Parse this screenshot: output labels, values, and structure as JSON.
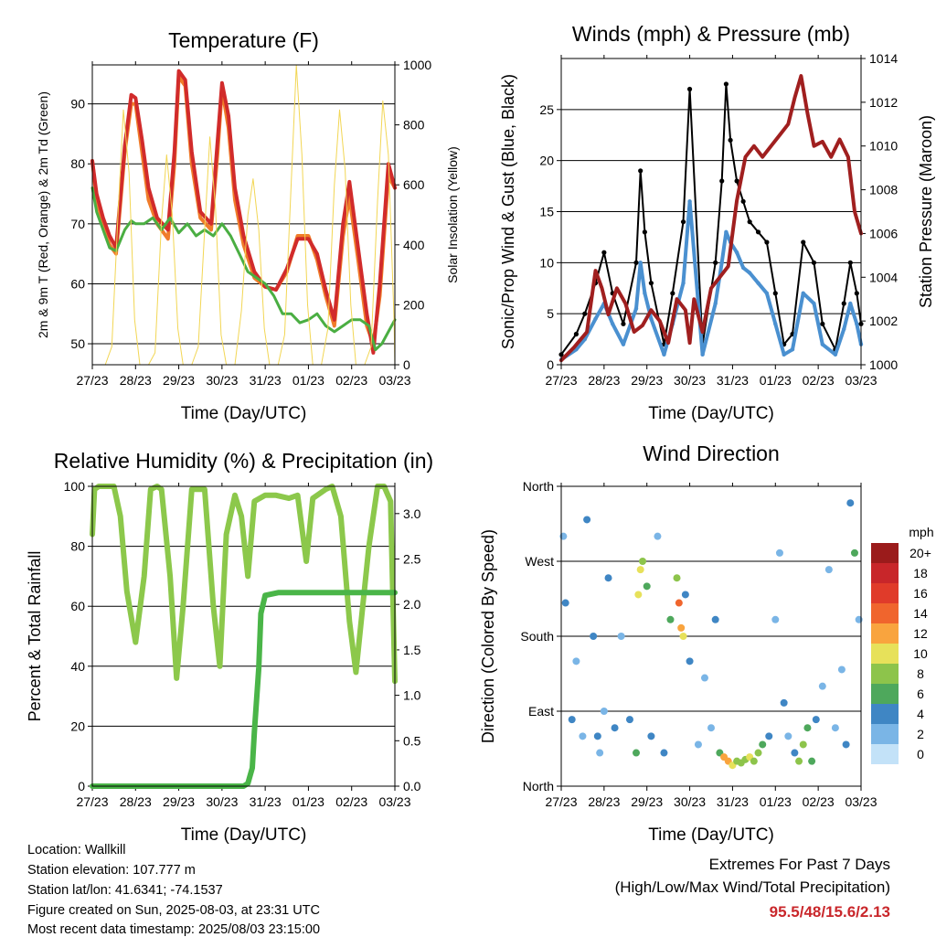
{
  "x_ticks": [
    "27/23",
    "28/23",
    "29/23",
    "30/23",
    "31/23",
    "01/23",
    "02/23",
    "03/23"
  ],
  "colors": {
    "temp_2m": "#f07c2a",
    "temp_9m": "#d12b2b",
    "dewpoint": "#4aae42",
    "solar": "#f2d654",
    "wind": "#4a90d0",
    "gust": "#000000",
    "pressure": "#a01f1f",
    "rh": "#8cc84b",
    "rain": "#4ab548",
    "extremes": "#c9272b"
  },
  "chart_data": [
    {
      "id": "temperature",
      "type": "line",
      "title": "Temperature (F)",
      "xlabel": "Time (Day/UTC)",
      "ylabel": "2m & 9m T (Red, Orange) & 2m Td (Green)",
      "y2label": "Solar Insolation (Yellow)",
      "xlim": [
        0,
        7
      ],
      "ylim": [
        46.5,
        96.5
      ],
      "y2lim": [
        0,
        1000
      ],
      "yticks": [
        50,
        60,
        70,
        80,
        90
      ],
      "y2ticks": [
        0,
        200,
        400,
        600,
        800,
        1000
      ],
      "series": [
        {
          "key": "temp_2m",
          "x": [
            0,
            0.1,
            0.25,
            0.4,
            0.55,
            0.75,
            0.9,
            1.0,
            1.15,
            1.3,
            1.5,
            1.75,
            1.9,
            2.0,
            2.15,
            2.3,
            2.5,
            2.75,
            2.9,
            3.0,
            3.15,
            3.3,
            3.5,
            3.75,
            4.0,
            4.25,
            4.5,
            4.75,
            5.0,
            5.2,
            5.4,
            5.6,
            5.8,
            5.95,
            6.15,
            6.35,
            6.5,
            6.65,
            6.85,
            7.0
          ],
          "y": [
            80.5,
            74,
            70,
            66.5,
            65,
            82,
            90,
            90,
            82,
            74,
            70,
            67.5,
            80,
            94.5,
            93,
            80,
            71,
            69,
            82,
            92.5,
            86,
            74,
            66.5,
            61,
            59.5,
            59,
            62,
            68,
            68,
            64,
            58,
            53,
            68,
            74.5,
            64,
            53,
            50,
            58,
            78,
            76
          ]
        },
        {
          "key": "temp_9m",
          "x": [
            0,
            0.1,
            0.25,
            0.4,
            0.55,
            0.75,
            0.9,
            1.0,
            1.15,
            1.3,
            1.5,
            1.75,
            1.9,
            2.0,
            2.15,
            2.3,
            2.5,
            2.75,
            2.9,
            3.0,
            3.15,
            3.3,
            3.5,
            3.75,
            4.0,
            4.25,
            4.5,
            4.75,
            5.0,
            5.2,
            5.4,
            5.6,
            5.8,
            5.95,
            6.15,
            6.35,
            6.5,
            6.65,
            6.85,
            7.0
          ],
          "y": [
            80.5,
            75,
            71,
            68,
            66,
            83,
            91.5,
            91,
            84,
            76,
            71,
            69,
            82,
            95.5,
            94,
            82,
            72,
            70,
            84,
            93.5,
            88,
            76,
            68,
            62,
            59.5,
            59,
            62.5,
            67.5,
            67.5,
            65,
            59,
            54,
            70,
            77,
            66,
            55,
            48.5,
            60,
            80,
            76
          ]
        },
        {
          "key": "dewpoint",
          "x": [
            0,
            0.1,
            0.25,
            0.4,
            0.55,
            0.75,
            0.9,
            1.0,
            1.2,
            1.4,
            1.6,
            1.8,
            2.0,
            2.2,
            2.4,
            2.6,
            2.8,
            3.0,
            3.2,
            3.4,
            3.6,
            3.8,
            4.0,
            4.2,
            4.4,
            4.6,
            4.8,
            5.0,
            5.2,
            5.4,
            5.6,
            5.8,
            6.0,
            6.2,
            6.4,
            6.55,
            6.7,
            6.85,
            7.0
          ],
          "y": [
            76,
            72,
            69,
            66,
            65.5,
            69,
            70.5,
            70,
            70,
            71,
            69,
            71,
            68.5,
            70,
            68,
            69,
            68,
            70,
            68,
            65,
            62,
            61,
            60,
            58,
            55,
            55,
            53.5,
            54,
            55,
            53,
            52,
            53,
            54,
            54,
            53,
            49,
            50,
            52,
            54
          ]
        },
        {
          "key": "solar",
          "x": [
            0,
            0.3,
            0.45,
            0.6,
            0.72,
            0.85,
            0.98,
            1.1,
            1.3,
            1.45,
            1.6,
            1.72,
            1.85,
            1.98,
            2.1,
            2.3,
            2.45,
            2.6,
            2.72,
            2.85,
            2.98,
            3.1,
            3.3,
            3.45,
            3.6,
            3.72,
            3.85,
            3.98,
            4.1,
            4.3,
            4.45,
            4.6,
            4.72,
            4.85,
            4.98,
            5.1,
            5.3,
            5.45,
            5.6,
            5.72,
            5.85,
            5.98,
            6.1,
            6.3,
            6.45,
            6.6,
            6.72,
            6.85,
            6.98,
            7.0
          ],
          "y": [
            0,
            0,
            60,
            520,
            850,
            640,
            150,
            0,
            0,
            40,
            480,
            700,
            500,
            120,
            0,
            0,
            60,
            450,
            760,
            520,
            100,
            0,
            0,
            180,
            500,
            620,
            450,
            120,
            0,
            0,
            100,
            600,
            1000,
            700,
            200,
            0,
            0,
            120,
            600,
            850,
            650,
            200,
            0,
            0,
            60,
            550,
            880,
            700,
            150,
            0
          ]
        }
      ]
    },
    {
      "id": "winds",
      "type": "scatter",
      "title": "Winds (mph) & Pressure (mb)",
      "xlabel": "Time (Day/UTC)",
      "ylabel": "Sonic/Prop Wind & Gust (Blue, Black)",
      "y2label": "Station Pressure (Maroon)",
      "xlim": [
        0,
        7
      ],
      "ylim": [
        0,
        30
      ],
      "y2lim": [
        1000,
        1014
      ],
      "yticks": [
        0,
        5,
        10,
        15,
        20,
        25
      ],
      "y2ticks": [
        1000,
        1002,
        1004,
        1006,
        1008,
        1010,
        1012,
        1014
      ],
      "series": [
        {
          "key": "gust",
          "x": [
            0,
            0.35,
            0.55,
            0.8,
            1.0,
            1.2,
            1.45,
            1.75,
            1.85,
            1.95,
            2.1,
            2.4,
            2.6,
            2.85,
            3.0,
            3.3,
            3.6,
            3.75,
            3.85,
            3.95,
            4.1,
            4.25,
            4.4,
            4.6,
            4.8,
            5.0,
            5.2,
            5.4,
            5.65,
            5.9,
            6.1,
            6.4,
            6.6,
            6.75,
            6.9,
            7.0
          ],
          "y": [
            1,
            3,
            5,
            8,
            11,
            7,
            4,
            10,
            19,
            13,
            8,
            2,
            7,
            14,
            27,
            2,
            10,
            18,
            27.5,
            22,
            18,
            16,
            14,
            13,
            12,
            7,
            2,
            3,
            12,
            10,
            4,
            1.5,
            6,
            10,
            7,
            4
          ]
        },
        {
          "key": "wind",
          "x": [
            0,
            0.35,
            0.55,
            0.8,
            1.0,
            1.2,
            1.45,
            1.75,
            1.85,
            1.95,
            2.1,
            2.4,
            2.6,
            2.85,
            3.0,
            3.3,
            3.6,
            3.75,
            3.85,
            3.95,
            4.1,
            4.25,
            4.4,
            4.6,
            4.8,
            5.0,
            5.2,
            5.4,
            5.65,
            5.9,
            6.1,
            6.4,
            6.6,
            6.75,
            6.9,
            7.0
          ],
          "y": [
            0.5,
            1.5,
            2.5,
            4.5,
            6,
            4,
            2,
            5.5,
            10,
            7,
            4.5,
            1,
            4,
            8,
            16,
            1,
            6,
            10,
            13,
            12,
            11,
            9.5,
            9,
            8,
            7,
            4,
            1,
            1.5,
            7,
            6,
            2,
            1,
            3.5,
            6,
            4,
            2
          ]
        },
        {
          "key": "pressure",
          "x": [
            0,
            0.3,
            0.6,
            0.8,
            0.95,
            1.1,
            1.3,
            1.5,
            1.7,
            1.9,
            2.1,
            2.3,
            2.5,
            2.7,
            2.9,
            3.0,
            3.1,
            3.3,
            3.5,
            3.7,
            3.9,
            4.1,
            4.3,
            4.5,
            4.7,
            4.9,
            5.1,
            5.3,
            5.45,
            5.6,
            5.75,
            5.9,
            6.1,
            6.3,
            6.5,
            6.7,
            6.85,
            7.0
          ],
          "y": [
            1000.2,
            1000.8,
            1001.5,
            1004.3,
            1003.5,
            1002.3,
            1003.5,
            1002.8,
            1001.5,
            1001.8,
            1002.5,
            1002.0,
            1001.0,
            1003.0,
            1002.5,
            1001.0,
            1003.0,
            1001.5,
            1003.5,
            1004.0,
            1004.5,
            1007.5,
            1009.5,
            1010.0,
            1009.5,
            1010.0,
            1010.5,
            1011.0,
            1012.2,
            1013.2,
            1011.5,
            1010.0,
            1010.2,
            1009.5,
            1010.3,
            1009.5,
            1007.0,
            1006.0
          ]
        }
      ]
    },
    {
      "id": "humidity",
      "type": "line",
      "title": "Relative Humidity (%) & Precipitation (in)",
      "xlabel": "Time (Day/UTC)",
      "ylabel": "Percent & Total Rainfall",
      "xlim": [
        0,
        7
      ],
      "ylim": [
        0,
        100
      ],
      "y2lim": [
        0,
        3.3
      ],
      "yticks": [
        0,
        20,
        40,
        60,
        80,
        100
      ],
      "y2ticks": [
        0.0,
        0.5,
        1.0,
        1.5,
        2.0,
        2.5,
        3.0
      ],
      "series": [
        {
          "key": "rh",
          "x": [
            0,
            0.05,
            0.15,
            0.5,
            0.65,
            0.8,
            1.0,
            1.2,
            1.35,
            1.5,
            1.6,
            1.8,
            1.95,
            2.1,
            2.3,
            2.6,
            2.8,
            2.95,
            3.1,
            3.3,
            3.45,
            3.6,
            3.75,
            4.0,
            4.25,
            4.55,
            4.75,
            4.95,
            5.1,
            5.4,
            5.55,
            5.75,
            5.95,
            6.1,
            6.4,
            6.6,
            6.75,
            6.9,
            7.0
          ],
          "y": [
            84,
            99,
            100,
            100,
            90,
            65,
            48,
            70,
            99,
            100,
            99,
            70,
            36,
            60,
            99,
            99,
            60,
            40,
            84,
            97,
            90,
            70,
            95,
            97,
            97,
            96,
            97,
            75,
            96,
            99,
            100,
            90,
            55,
            38,
            80,
            100,
            100,
            95,
            35
          ]
        },
        {
          "key": "rain",
          "x": [
            0,
            3.5,
            3.6,
            3.7,
            3.75,
            3.85,
            3.9,
            4.0,
            4.3,
            7.0
          ],
          "y": [
            0.0,
            0.0,
            0.03,
            0.2,
            0.6,
            1.3,
            1.9,
            2.1,
            2.13,
            2.13
          ]
        }
      ]
    },
    {
      "id": "direction",
      "type": "scatter",
      "title": "Wind Direction",
      "xlabel": "Time (Day/UTC)",
      "ylabel": "Direction (Colored By Speed)",
      "xlim": [
        0,
        7
      ],
      "ylim": [
        0,
        360
      ],
      "yticks": [
        "North",
        "East",
        "South",
        "West",
        "North"
      ],
      "colorbar": {
        "unit": "mph",
        "labels": [
          "20+",
          "18",
          "16",
          "14",
          "12",
          "10",
          "8",
          "6",
          "4",
          "2",
          "0"
        ],
        "colors": [
          "#9b1b1b",
          "#c8262a",
          "#e03b2a",
          "#f0652d",
          "#f9a43e",
          "#e7e15a",
          "#8dc44b",
          "#4ea85c",
          "#3f86c4",
          "#7ab5e6",
          "#c3e2f8"
        ]
      },
      "series": [
        {
          "key": "direction",
          "x": [
            0.05,
            0.1,
            0.25,
            0.35,
            0.5,
            0.6,
            0.75,
            0.85,
            0.9,
            1.0,
            1.1,
            1.25,
            1.4,
            1.6,
            1.75,
            1.8,
            1.85,
            1.9,
            2.0,
            2.1,
            2.25,
            2.4,
            2.55,
            2.7,
            2.75,
            2.8,
            2.85,
            2.9,
            3.0,
            3.2,
            3.35,
            3.5,
            3.6,
            3.7,
            3.8,
            3.9,
            4.0,
            4.1,
            4.2,
            4.3,
            4.4,
            4.5,
            4.6,
            4.7,
            4.85,
            5.0,
            5.1,
            5.2,
            5.3,
            5.45,
            5.55,
            5.65,
            5.75,
            5.85,
            5.95,
            6.1,
            6.25,
            6.4,
            6.55,
            6.65,
            6.75,
            6.85,
            6.95
          ],
          "y": [
            300,
            220,
            80,
            150,
            60,
            320,
            180,
            60,
            40,
            90,
            250,
            70,
            180,
            80,
            40,
            230,
            260,
            270,
            240,
            60,
            300,
            40,
            200,
            250,
            220,
            190,
            180,
            230,
            150,
            50,
            130,
            70,
            200,
            40,
            35,
            30,
            25,
            30,
            28,
            32,
            35,
            30,
            40,
            50,
            60,
            200,
            280,
            100,
            60,
            40,
            30,
            50,
            70,
            30,
            80,
            120,
            260,
            70,
            140,
            50,
            340,
            280,
            200
          ],
          "speed": [
            2,
            4,
            3,
            1,
            2,
            3,
            4,
            3,
            2,
            1,
            4,
            3,
            2,
            3,
            5,
            9,
            10,
            8,
            5,
            3,
            2,
            3,
            5,
            8,
            14,
            12,
            9,
            4,
            3,
            2,
            2,
            1,
            3,
            6,
            12,
            11,
            9,
            8,
            7,
            8,
            9,
            8,
            7,
            6,
            4,
            1,
            2,
            3,
            2,
            4,
            7,
            8,
            6,
            5,
            3,
            2,
            1,
            2,
            1,
            3,
            4,
            5,
            2
          ]
        }
      ]
    }
  ],
  "footer": {
    "location": "Location: Wallkill",
    "elevation": "Station elevation: 107.777 m",
    "latlon": "Station lat/lon: 41.6341; -74.1537",
    "created": "Figure created on Sun, 2025-08-03, at 23:31 UTC",
    "recent": "Most recent data timestamp: 2025/08/03 23:15:00"
  },
  "extremes": {
    "title": "Extremes For Past 7 Days",
    "subtitle": "(High/Low/Max Wind/Total Precipitation)",
    "values": "95.5/48/15.6/2.13"
  }
}
